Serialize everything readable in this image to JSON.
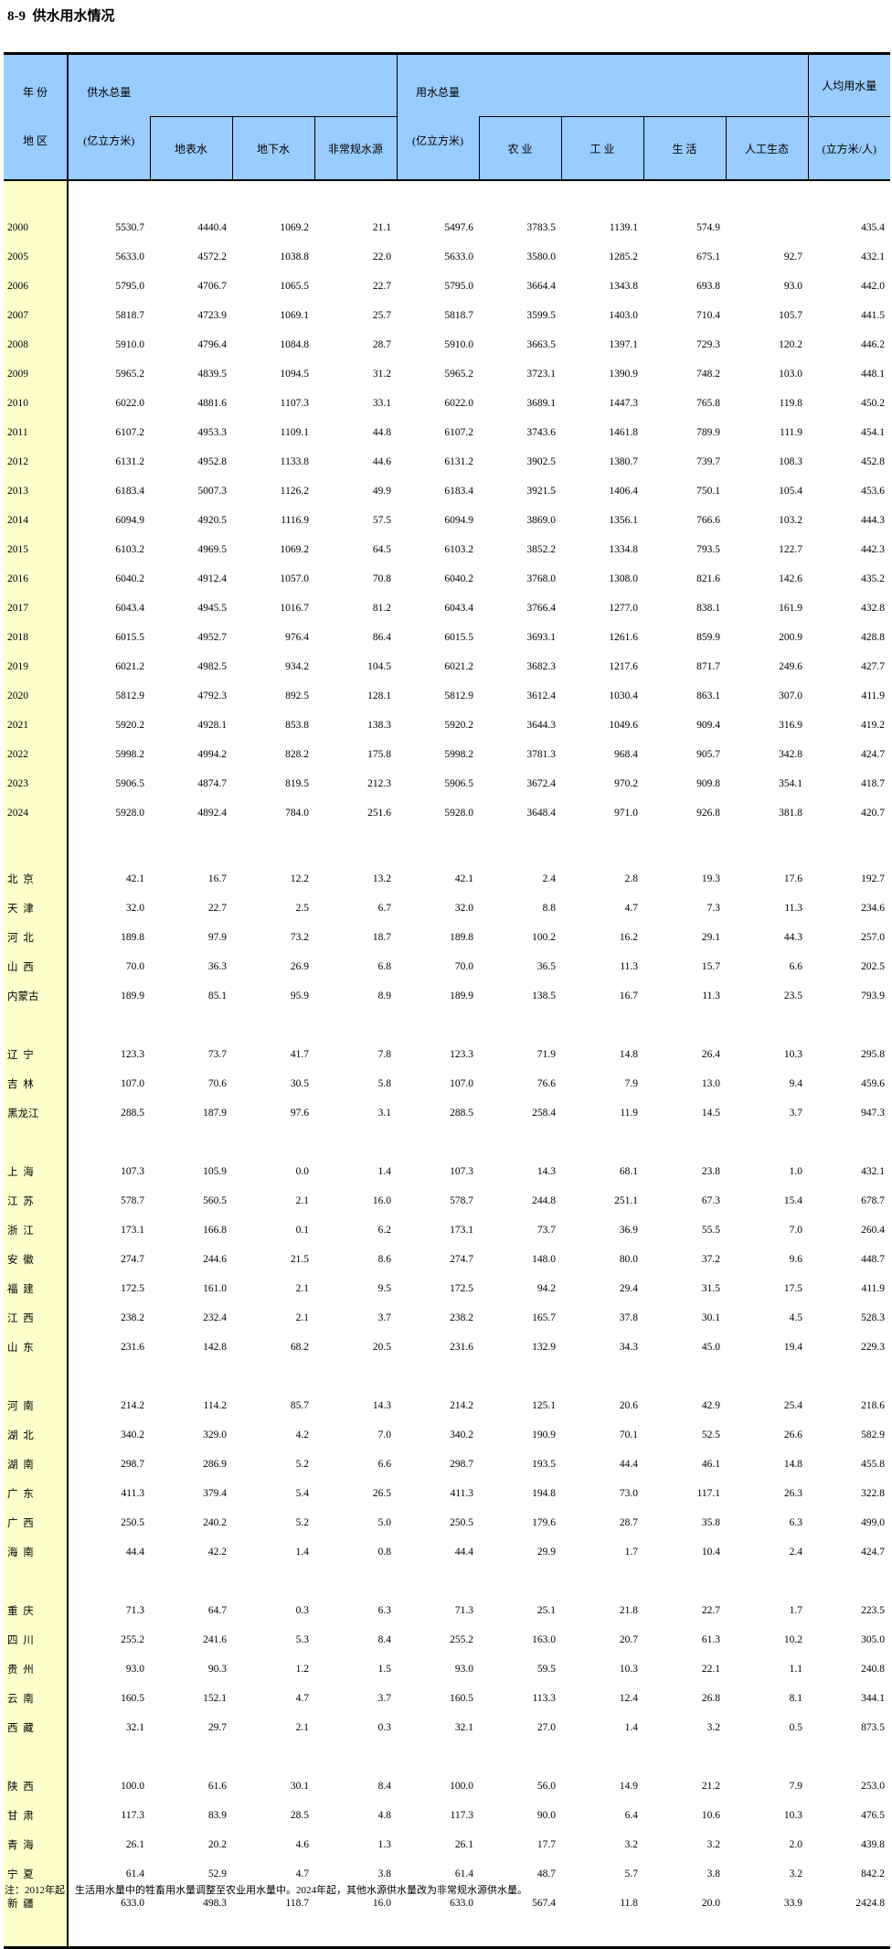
{
  "page": {
    "title": "8-9  供水用水情况",
    "note": "注：2012年起，生活用水量中的牲畜用水量调整至农业用水量中。2024年起，其他水源供水量改为非常规水源供水量。"
  },
  "colors": {
    "header_bg": "#99CCFF",
    "rowlabel_bg": "#FFFFCC",
    "border": "#000000"
  },
  "header": {
    "corner_top": "年 份",
    "corner_bottom": "地 区",
    "supply_label": "供水总量",
    "supply_unit": "(亿立方米)",
    "supply_subs": [
      "地表水",
      "地下水",
      "非常规水源"
    ],
    "use_label": "用水总量",
    "use_unit": "(亿立方米)",
    "use_subs": [
      "农 业",
      "工 业",
      "生 活",
      "人工生态"
    ],
    "percapita_label": "人均用水量",
    "percapita_unit": "(立方米/人)"
  },
  "sections": [
    {
      "name": "years",
      "gap_after": 40,
      "rows": [
        {
          "label": "2000",
          "values": [
            "5530.7",
            "4440.4",
            "1069.2",
            "21.1",
            "5497.6",
            "3783.5",
            "1139.1",
            "574.9",
            "",
            "435.4"
          ]
        },
        {
          "label": "2005",
          "values": [
            "5633.0",
            "4572.2",
            "1038.8",
            "22.0",
            "5633.0",
            "3580.0",
            "1285.2",
            "675.1",
            "92.7",
            "432.1"
          ]
        },
        {
          "label": "2006",
          "values": [
            "5795.0",
            "4706.7",
            "1065.5",
            "22.7",
            "5795.0",
            "3664.4",
            "1343.8",
            "693.8",
            "93.0",
            "442.0"
          ]
        },
        {
          "label": "2007",
          "values": [
            "5818.7",
            "4723.9",
            "1069.1",
            "25.7",
            "5818.7",
            "3599.5",
            "1403.0",
            "710.4",
            "105.7",
            "441.5"
          ]
        },
        {
          "label": "2008",
          "values": [
            "5910.0",
            "4796.4",
            "1084.8",
            "28.7",
            "5910.0",
            "3663.5",
            "1397.1",
            "729.3",
            "120.2",
            "446.2"
          ]
        },
        {
          "label": "2009",
          "values": [
            "5965.2",
            "4839.5",
            "1094.5",
            "31.2",
            "5965.2",
            "3723.1",
            "1390.9",
            "748.2",
            "103.0",
            "448.1"
          ]
        },
        {
          "label": "2010",
          "values": [
            "6022.0",
            "4881.6",
            "1107.3",
            "33.1",
            "6022.0",
            "3689.1",
            "1447.3",
            "765.8",
            "119.8",
            "450.2"
          ]
        },
        {
          "label": "2011",
          "values": [
            "6107.2",
            "4953.3",
            "1109.1",
            "44.8",
            "6107.2",
            "3743.6",
            "1461.8",
            "789.9",
            "111.9",
            "454.1"
          ]
        },
        {
          "label": "2012",
          "values": [
            "6131.2",
            "4952.8",
            "1133.8",
            "44.6",
            "6131.2",
            "3902.5",
            "1380.7",
            "739.7",
            "108.3",
            "452.8"
          ]
        },
        {
          "label": "2013",
          "values": [
            "6183.4",
            "5007.3",
            "1126.2",
            "49.9",
            "6183.4",
            "3921.5",
            "1406.4",
            "750.1",
            "105.4",
            "453.6"
          ]
        },
        {
          "label": "2014",
          "values": [
            "6094.9",
            "4920.5",
            "1116.9",
            "57.5",
            "6094.9",
            "3869.0",
            "1356.1",
            "766.6",
            "103.2",
            "444.3"
          ]
        },
        {
          "label": "2015",
          "values": [
            "6103.2",
            "4969.5",
            "1069.2",
            "64.5",
            "6103.2",
            "3852.2",
            "1334.8",
            "793.5",
            "122.7",
            "442.3"
          ]
        },
        {
          "label": "2016",
          "values": [
            "6040.2",
            "4912.4",
            "1057.0",
            "70.8",
            "6040.2",
            "3768.0",
            "1308.0",
            "821.6",
            "142.6",
            "435.2"
          ]
        },
        {
          "label": "2017",
          "values": [
            "6043.4",
            "4945.5",
            "1016.7",
            "81.2",
            "6043.4",
            "3766.4",
            "1277.0",
            "838.1",
            "161.9",
            "432.8"
          ]
        },
        {
          "label": "2018",
          "values": [
            "6015.5",
            "4952.7",
            "976.4",
            "86.4",
            "6015.5",
            "3693.1",
            "1261.6",
            "859.9",
            "200.9",
            "428.8"
          ]
        },
        {
          "label": "2019",
          "values": [
            "6021.2",
            "4982.5",
            "934.2",
            "104.5",
            "6021.2",
            "3682.3",
            "1217.6",
            "871.7",
            "249.6",
            "427.7"
          ]
        },
        {
          "label": "2020",
          "values": [
            "5812.9",
            "4792.3",
            "892.5",
            "128.1",
            "5812.9",
            "3612.4",
            "1030.4",
            "863.1",
            "307.0",
            "411.9"
          ]
        },
        {
          "label": "2021",
          "values": [
            "5920.2",
            "4928.1",
            "853.8",
            "138.3",
            "5920.2",
            "3644.3",
            "1049.6",
            "909.4",
            "316.9",
            "419.2"
          ]
        },
        {
          "label": "2022",
          "values": [
            "5998.2",
            "4994.2",
            "828.2",
            "175.8",
            "5998.2",
            "3781.3",
            "968.4",
            "905.7",
            "342.8",
            "424.7"
          ]
        },
        {
          "label": "2023",
          "values": [
            "5906.5",
            "4874.7",
            "819.5",
            "212.3",
            "5906.5",
            "3672.4",
            "970.2",
            "909.8",
            "354.1",
            "418.7"
          ]
        },
        {
          "label": "2024",
          "values": [
            "5928.0",
            "4892.4",
            "784.0",
            "251.6",
            "5928.0",
            "3648.4",
            "971.0",
            "926.8",
            "381.8",
            "420.7"
          ]
        }
      ]
    },
    {
      "name": "north",
      "gap_after": 32,
      "rows": [
        {
          "label": "北  京",
          "values": [
            "42.1",
            "16.7",
            "12.2",
            "13.2",
            "42.1",
            "2.4",
            "2.8",
            "19.3",
            "17.6",
            "192.7"
          ]
        },
        {
          "label": "天  津",
          "values": [
            "32.0",
            "22.7",
            "2.5",
            "6.7",
            "32.0",
            "8.8",
            "4.7",
            "7.3",
            "11.3",
            "234.6"
          ]
        },
        {
          "label": "河  北",
          "values": [
            "189.8",
            "97.9",
            "73.2",
            "18.7",
            "189.8",
            "100.2",
            "16.2",
            "29.1",
            "44.3",
            "257.0"
          ]
        },
        {
          "label": "山  西",
          "values": [
            "70.0",
            "36.3",
            "26.9",
            "6.8",
            "70.0",
            "36.5",
            "11.3",
            "15.7",
            "6.6",
            "202.5"
          ]
        },
        {
          "label": "内蒙古",
          "values": [
            "189.9",
            "85.1",
            "95.9",
            "8.9",
            "189.9",
            "138.5",
            "16.7",
            "11.3",
            "23.5",
            "793.9"
          ]
        }
      ]
    },
    {
      "name": "northeast",
      "gap_after": 32,
      "rows": [
        {
          "label": "辽  宁",
          "values": [
            "123.3",
            "73.7",
            "41.7",
            "7.8",
            "123.3",
            "71.9",
            "14.8",
            "26.4",
            "10.3",
            "295.8"
          ]
        },
        {
          "label": "吉  林",
          "values": [
            "107.0",
            "70.6",
            "30.5",
            "5.8",
            "107.0",
            "76.6",
            "7.9",
            "13.0",
            "9.4",
            "459.6"
          ]
        },
        {
          "label": "黑龙江",
          "values": [
            "288.5",
            "187.9",
            "97.6",
            "3.1",
            "288.5",
            "258.4",
            "11.9",
            "14.5",
            "3.7",
            "947.3"
          ]
        }
      ]
    },
    {
      "name": "east",
      "gap_after": 32,
      "rows": [
        {
          "label": "上  海",
          "values": [
            "107.3",
            "105.9",
            "0.0",
            "1.4",
            "107.3",
            "14.3",
            "68.1",
            "23.8",
            "1.0",
            "432.1"
          ]
        },
        {
          "label": "江  苏",
          "values": [
            "578.7",
            "560.5",
            "2.1",
            "16.0",
            "578.7",
            "244.8",
            "251.1",
            "67.3",
            "15.4",
            "678.7"
          ]
        },
        {
          "label": "浙  江",
          "values": [
            "173.1",
            "166.8",
            "0.1",
            "6.2",
            "173.1",
            "73.7",
            "36.9",
            "55.5",
            "7.0",
            "260.4"
          ]
        },
        {
          "label": "安  徽",
          "values": [
            "274.7",
            "244.6",
            "21.5",
            "8.6",
            "274.7",
            "148.0",
            "80.0",
            "37.2",
            "9.6",
            "448.7"
          ]
        },
        {
          "label": "福  建",
          "values": [
            "172.5",
            "161.0",
            "2.1",
            "9.5",
            "172.5",
            "94.2",
            "29.4",
            "31.5",
            "17.5",
            "411.9"
          ]
        },
        {
          "label": "江  西",
          "values": [
            "238.2",
            "232.4",
            "2.1",
            "3.7",
            "238.2",
            "165.7",
            "37.8",
            "30.1",
            "4.5",
            "528.3"
          ]
        },
        {
          "label": "山  东",
          "values": [
            "231.6",
            "142.8",
            "68.2",
            "20.5",
            "231.6",
            "132.9",
            "34.3",
            "45.0",
            "19.4",
            "229.3"
          ]
        }
      ]
    },
    {
      "name": "central-south",
      "gap_after": 32,
      "rows": [
        {
          "label": "河  南",
          "values": [
            "214.2",
            "114.2",
            "85.7",
            "14.3",
            "214.2",
            "125.1",
            "20.6",
            "42.9",
            "25.4",
            "218.6"
          ]
        },
        {
          "label": "湖  北",
          "values": [
            "340.2",
            "329.0",
            "4.2",
            "7.0",
            "340.2",
            "190.9",
            "70.1",
            "52.5",
            "26.6",
            "582.9"
          ]
        },
        {
          "label": "湖  南",
          "values": [
            "298.7",
            "286.9",
            "5.2",
            "6.6",
            "298.7",
            "193.5",
            "44.4",
            "46.1",
            "14.8",
            "455.8"
          ]
        },
        {
          "label": "广  东",
          "values": [
            "411.3",
            "379.4",
            "5.4",
            "26.5",
            "411.3",
            "194.8",
            "73.0",
            "117.1",
            "26.3",
            "322.8"
          ]
        },
        {
          "label": "广  西",
          "values": [
            "250.5",
            "240.2",
            "5.2",
            "5.0",
            "250.5",
            "179.6",
            "28.7",
            "35.8",
            "6.3",
            "499.0"
          ]
        },
        {
          "label": "海  南",
          "values": [
            "44.4",
            "42.2",
            "1.4",
            "0.8",
            "44.4",
            "29.9",
            "1.7",
            "10.4",
            "2.4",
            "424.7"
          ]
        }
      ]
    },
    {
      "name": "southwest",
      "gap_after": 32,
      "rows": [
        {
          "label": "重  庆",
          "values": [
            "71.3",
            "64.7",
            "0.3",
            "6.3",
            "71.3",
            "25.1",
            "21.8",
            "22.7",
            "1.7",
            "223.5"
          ]
        },
        {
          "label": "四  川",
          "values": [
            "255.2",
            "241.6",
            "5.3",
            "8.4",
            "255.2",
            "163.0",
            "20.7",
            "61.3",
            "10.2",
            "305.0"
          ]
        },
        {
          "label": "贵  州",
          "values": [
            "93.0",
            "90.3",
            "1.2",
            "1.5",
            "93.0",
            "59.5",
            "10.3",
            "22.1",
            "1.1",
            "240.8"
          ]
        },
        {
          "label": "云  南",
          "values": [
            "160.5",
            "152.1",
            "4.7",
            "3.7",
            "160.5",
            "113.3",
            "12.4",
            "26.8",
            "8.1",
            "344.1"
          ]
        },
        {
          "label": "西  藏",
          "values": [
            "32.1",
            "29.7",
            "2.1",
            "0.3",
            "32.1",
            "27.0",
            "1.4",
            "3.2",
            "0.5",
            "873.5"
          ]
        }
      ]
    },
    {
      "name": "northwest",
      "gap_after": 0,
      "rows": [
        {
          "label": "陕  西",
          "values": [
            "100.0",
            "61.6",
            "30.1",
            "8.4",
            "100.0",
            "56.0",
            "14.9",
            "21.2",
            "7.9",
            "253.0"
          ]
        },
        {
          "label": "甘  肃",
          "values": [
            "117.3",
            "83.9",
            "28.5",
            "4.8",
            "117.3",
            "90.0",
            "6.4",
            "10.6",
            "10.3",
            "476.5"
          ]
        },
        {
          "label": "青  海",
          "values": [
            "26.1",
            "20.2",
            "4.6",
            "1.3",
            "26.1",
            "17.7",
            "3.2",
            "3.2",
            "2.0",
            "439.8"
          ]
        },
        {
          "label": "宁  夏",
          "values": [
            "61.4",
            "52.9",
            "4.7",
            "3.8",
            "61.4",
            "48.7",
            "5.7",
            "3.8",
            "3.2",
            "842.2"
          ]
        },
        {
          "label": "新  疆",
          "values": [
            "633.0",
            "498.3",
            "118.7",
            "16.0",
            "633.0",
            "567.4",
            "11.8",
            "20.0",
            "33.9",
            "2424.8"
          ]
        }
      ]
    }
  ]
}
